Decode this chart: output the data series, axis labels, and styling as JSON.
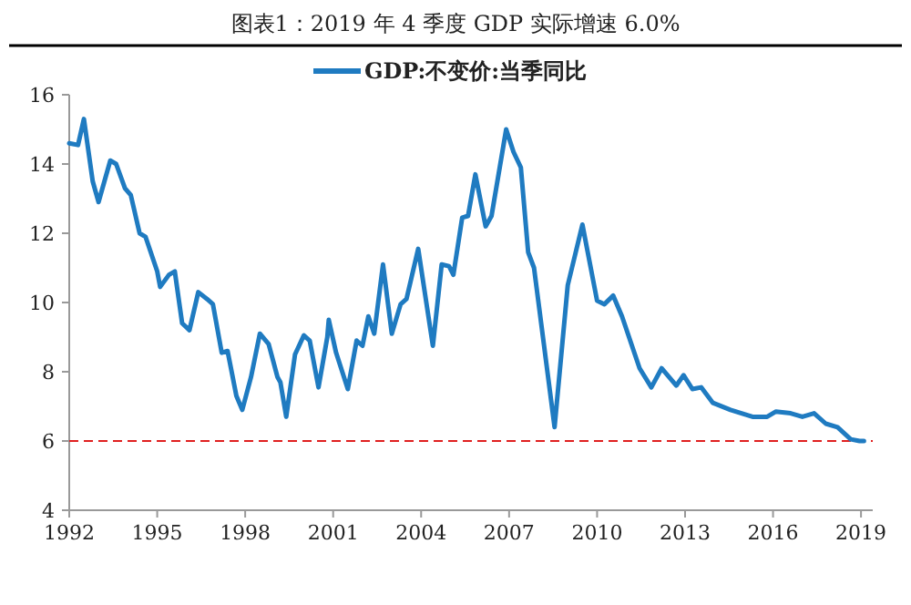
{
  "chart_data": {
    "type": "line",
    "title": "图表1：2019 年 4 季度 GDP 实际增速 6.0%",
    "x": [
      1992.0,
      1992.3,
      1992.5,
      1992.8,
      1993.0,
      1993.4,
      1993.6,
      1993.9,
      1994.1,
      1994.4,
      1994.6,
      1995.0,
      1995.1,
      1995.4,
      1995.6,
      1995.85,
      1996.1,
      1996.4,
      1996.7,
      1996.9,
      1997.2,
      1997.4,
      1997.7,
      1997.9,
      1998.2,
      1998.5,
      1998.8,
      1999.1,
      1999.2,
      1999.4,
      1999.7,
      2000.0,
      2000.2,
      2000.5,
      2000.8,
      2000.85,
      2001.1,
      2001.5,
      2001.8,
      2002.0,
      2002.2,
      2002.4,
      2002.7,
      2003.0,
      2003.3,
      2003.5,
      2003.9,
      2004.4,
      2004.7,
      2004.95,
      2005.1,
      2005.4,
      2005.6,
      2005.85,
      2006.2,
      2006.4,
      2006.9,
      2007.15,
      2007.4,
      2007.65,
      2007.85,
      2008.55,
      2009.0,
      2009.5,
      2010.0,
      2010.25,
      2010.55,
      2010.85,
      2011.45,
      2011.85,
      2012.2,
      2012.7,
      2012.95,
      2013.25,
      2013.55,
      2013.95,
      2014.55,
      2015.3,
      2015.8,
      2016.1,
      2016.6,
      2017.0,
      2017.4,
      2017.8,
      2018.2,
      2018.65,
      2018.95,
      2019.1
    ],
    "series": [
      {
        "name": "GDP:不变价:当季同比",
        "color": "#1f7bc1",
        "values": [
          14.6,
          14.55,
          15.3,
          13.5,
          12.9,
          14.1,
          14.0,
          13.3,
          13.1,
          12.0,
          11.9,
          10.9,
          10.45,
          10.8,
          10.9,
          9.4,
          9.2,
          10.3,
          10.1,
          9.95,
          8.55,
          8.6,
          7.3,
          6.9,
          7.85,
          9.1,
          8.8,
          7.85,
          7.7,
          6.7,
          8.5,
          9.05,
          8.9,
          7.55,
          9.0,
          9.5,
          8.55,
          7.5,
          8.9,
          8.75,
          9.6,
          9.1,
          11.1,
          9.1,
          9.95,
          10.1,
          11.55,
          8.75,
          11.1,
          11.05,
          10.8,
          12.45,
          12.5,
          13.7,
          12.2,
          12.5,
          15.0,
          14.35,
          13.9,
          11.45,
          11.0,
          6.4,
          10.5,
          12.25,
          10.05,
          9.95,
          10.2,
          9.6,
          8.1,
          7.55,
          8.1,
          7.6,
          7.9,
          7.5,
          7.55,
          7.1,
          6.9,
          6.7,
          6.7,
          6.85,
          6.8,
          6.7,
          6.8,
          6.5,
          6.4,
          6.05,
          6.0,
          6.0
        ]
      }
    ],
    "xlim": [
      1992,
      2019.4
    ],
    "xticks": [
      1992,
      1995,
      1998,
      2001,
      2004,
      2007,
      2010,
      2013,
      2016,
      2019
    ],
    "ylim": [
      4,
      16
    ],
    "yticks": [
      4,
      6,
      8,
      10,
      12,
      14,
      16
    ],
    "ref_lines": [
      {
        "axis": "y",
        "value": 6,
        "color": "#e02020",
        "line_style": "dashed"
      }
    ],
    "legend": "top",
    "grid": false,
    "marker": "none",
    "line_style": "solid"
  }
}
